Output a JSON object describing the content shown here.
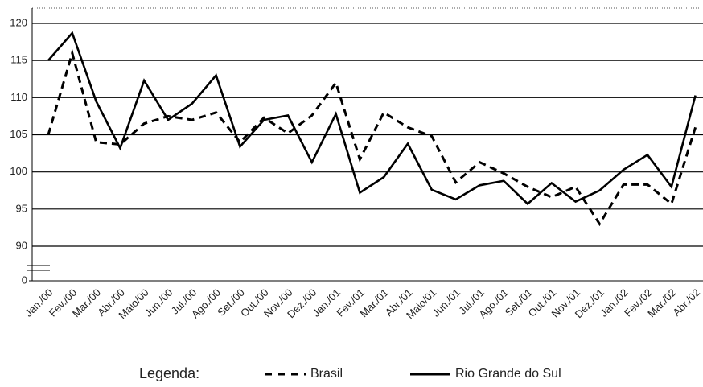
{
  "chart_data": {
    "type": "line",
    "categories": [
      "Jan./00",
      "Fev./00",
      "Mar./00",
      "Abr./00",
      "Maio/00",
      "Jun./00",
      "Jul./00",
      "Ago./00",
      "Set./00",
      "Out./00",
      "Nov./00",
      "Dez./00",
      "Jan./01",
      "Fev./01",
      "Mar./01",
      "Abr./01",
      "Maio/01",
      "Jun./01",
      "Jul./01",
      "Ago./01",
      "Set./01",
      "Out./01",
      "Nov./01",
      "Dez./01",
      "Jan./02",
      "Fev./02",
      "Mar./02",
      "Abr./02"
    ],
    "series": [
      {
        "name": "Brasil",
        "color": "#000000",
        "dash": true,
        "values": [
          105,
          116,
          104,
          103.7,
          106.5,
          107.5,
          107,
          108,
          104,
          107.3,
          105.2,
          107.6,
          112,
          101.7,
          108,
          106,
          104.8,
          98.6,
          101.3,
          99.8,
          98,
          96.6,
          98,
          93,
          98.3,
          98.3,
          95.7,
          106
        ]
      },
      {
        "name": "Rio Grande do Sul",
        "color": "#000000",
        "dash": false,
        "values": [
          115,
          118.7,
          109.5,
          103.2,
          112.3,
          107,
          109.2,
          113,
          103.4,
          107,
          107.6,
          101.3,
          107.8,
          97.2,
          99.3,
          103.8,
          97.6,
          96.3,
          98.2,
          98.8,
          95.7,
          98.5,
          96,
          97.5,
          100.3,
          102.3,
          98,
          110.3
        ]
      }
    ],
    "ylim": [
      0,
      120
    ],
    "yticks": [
      0,
      90,
      95,
      100,
      105,
      110,
      115,
      120
    ],
    "grid": true,
    "legend_title": "Legenda:"
  }
}
